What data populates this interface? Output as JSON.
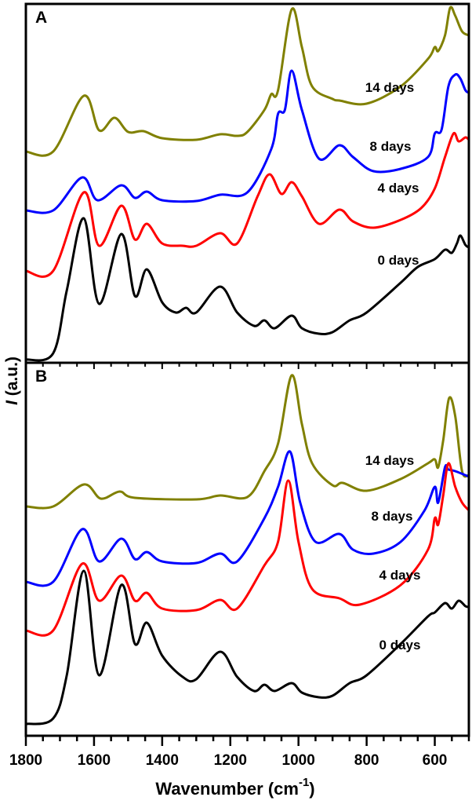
{
  "chart_data": [
    {
      "type": "line",
      "panel_label": "A",
      "xlabel": "Wavenumber (cm",
      "xlabel_sup": "-1",
      "xlabel_close": ")",
      "ylabel_italic": "I",
      "ylabel": " (a.u.)",
      "xlim": [
        1800,
        500
      ],
      "ylim": [
        0,
        91.4
      ],
      "xticks": [
        "1800",
        "1600",
        "1400",
        "1200",
        "1000",
        "800",
        "600"
      ],
      "series": [
        {
          "name": "14 days",
          "color": "#808000",
          "x": [
            1800,
            1720,
            1630,
            1585,
            1540,
            1500,
            1455,
            1400,
            1300,
            1230,
            1180,
            1150,
            1100,
            1080,
            1060,
            1020,
            990,
            960,
            900,
            880,
            800,
            700,
            620,
            600,
            590,
            570,
            555,
            540,
            520,
            500
          ],
          "y": [
            53.8,
            53.8,
            68,
            59.2,
            62.4,
            58.8,
            59,
            57.2,
            56.8,
            58.2,
            57.8,
            58.8,
            64.4,
            68.4,
            69.4,
            90,
            80.4,
            70.4,
            67.2,
            66.8,
            66,
            70.4,
            77.4,
            80.4,
            79.4,
            83.4,
            90.4,
            88.4,
            84.4,
            83.4
          ]
        },
        {
          "name": "8 days",
          "color": "#0000ff",
          "x": [
            1800,
            1720,
            1635,
            1590,
            1520,
            1480,
            1445,
            1400,
            1300,
            1230,
            1150,
            1080,
            1060,
            1040,
            1020,
            990,
            940,
            880,
            840,
            780,
            700,
            620,
            600,
            580,
            560,
            540,
            525,
            510,
            500
          ],
          "y": [
            38.8,
            38.8,
            47.2,
            41.4,
            45.2,
            42,
            43.6,
            41.4,
            41.2,
            42.8,
            43.4,
            54.4,
            63.4,
            64.4,
            74.4,
            64.4,
            52,
            55.4,
            52.4,
            48.8,
            49.4,
            52.4,
            58.4,
            59.4,
            70.4,
            73.4,
            72.4,
            69.4,
            68.8
          ]
        },
        {
          "name": "4 days",
          "color": "#ff0000",
          "x": [
            1800,
            1720,
            1630,
            1585,
            1520,
            1480,
            1445,
            1400,
            1340,
            1300,
            1230,
            1180,
            1120,
            1085,
            1050,
            1020,
            990,
            940,
            880,
            840,
            780,
            700,
            640,
            600,
            570,
            545,
            530,
            510,
            500
          ],
          "y": [
            23.4,
            23.4,
            43.4,
            29.8,
            40,
            31.4,
            35.4,
            30.4,
            29.8,
            29.8,
            33,
            30.4,
            42.4,
            48,
            43,
            46,
            42.4,
            35.4,
            39,
            36,
            34.4,
            36.4,
            39.4,
            44.4,
            52.4,
            58.4,
            56.4,
            57.4,
            56.8
          ]
        },
        {
          "name": "0 days",
          "color": "#000000",
          "x": [
            1800,
            1720,
            1680,
            1630,
            1585,
            1520,
            1480,
            1445,
            1400,
            1360,
            1330,
            1300,
            1230,
            1180,
            1130,
            1100,
            1070,
            1020,
            990,
            940,
            900,
            850,
            800,
            700,
            650,
            600,
            570,
            550,
            535,
            525,
            510,
            500
          ],
          "y": [
            0.8,
            2.4,
            18.4,
            36.8,
            15,
            32.8,
            17,
            23.8,
            15.4,
            12.8,
            14,
            12.8,
            19.4,
            12.8,
            9.4,
            10.8,
            8.8,
            12,
            8.8,
            7.4,
            7.8,
            10.8,
            12.8,
            20.4,
            24.4,
            26.4,
            28.8,
            28,
            30.4,
            32.4,
            30,
            29.4
          ]
        }
      ]
    },
    {
      "type": "line",
      "panel_label": "B",
      "xlim": [
        1800,
        500
      ],
      "ylim": [
        0,
        95
      ],
      "series": [
        {
          "name": "14 days",
          "color": "#808000",
          "x": [
            1800,
            1720,
            1630,
            1580,
            1525,
            1480,
            1300,
            1230,
            1150,
            1100,
            1060,
            1020,
            990,
            960,
            900,
            870,
            800,
            700,
            620,
            600,
            590,
            575,
            558,
            540,
            520,
            500
          ],
          "y": [
            58.4,
            58.4,
            64,
            60.4,
            62.2,
            60.6,
            60.2,
            61.2,
            60.8,
            67.4,
            74.4,
            91.8,
            79.4,
            69.4,
            63.8,
            64.4,
            62.4,
            65.4,
            69.4,
            70.4,
            68.4,
            75.4,
            86,
            81.4,
            67.4,
            66.4
          ]
        },
        {
          "name": "8 days",
          "color": "#0000ff",
          "x": [
            1800,
            1720,
            1635,
            1585,
            1520,
            1480,
            1445,
            1400,
            1300,
            1230,
            1180,
            1100,
            1060,
            1025,
            995,
            950,
            880,
            840,
            780,
            700,
            630,
            600,
            590,
            570,
            560,
            540,
            500
          ],
          "y": [
            39.2,
            39.2,
            52.6,
            44.4,
            50.2,
            45,
            46.8,
            44.4,
            44,
            46.4,
            44.4,
            55.4,
            63.4,
            72.4,
            59.4,
            49.4,
            51.4,
            47.4,
            46.4,
            49.4,
            57.4,
            63.4,
            59.4,
            68.4,
            67.8,
            67.4,
            66
          ]
        },
        {
          "name": "4 days",
          "color": "#ff0000",
          "x": [
            1800,
            1720,
            1635,
            1585,
            1520,
            1480,
            1445,
            1400,
            1300,
            1230,
            1180,
            1100,
            1060,
            1030,
            1000,
            960,
            880,
            820,
            700,
            620,
            600,
            590,
            575,
            560,
            540,
            520,
            500
          ],
          "y": [
            26.8,
            26.8,
            43.8,
            34.4,
            40.8,
            34.4,
            36.4,
            32.4,
            32,
            34.6,
            32.4,
            43.4,
            49.4,
            65,
            49.4,
            37.4,
            35,
            33.4,
            38.4,
            47.4,
            55.4,
            53.8,
            61.4,
            69.4,
            63.4,
            59.4,
            57.4
          ]
        },
        {
          "name": "0 days",
          "color": "#000000",
          "x": [
            1800,
            1720,
            1680,
            1630,
            1585,
            1520,
            1480,
            1445,
            1400,
            1340,
            1300,
            1230,
            1180,
            1130,
            1100,
            1070,
            1020,
            990,
            940,
            900,
            850,
            800,
            700,
            620,
            600,
            570,
            550,
            530,
            510,
            500
          ],
          "y": [
            3,
            4.4,
            15.4,
            42,
            15.4,
            38.4,
            23.4,
            28.8,
            20.4,
            15,
            14.4,
            21.4,
            15,
            11.4,
            13,
            11.4,
            13.4,
            11,
            9.8,
            10.2,
            13.4,
            15.4,
            23.4,
            30.4,
            31.4,
            33.8,
            32.4,
            34.4,
            33,
            32.8
          ]
        }
      ]
    }
  ]
}
